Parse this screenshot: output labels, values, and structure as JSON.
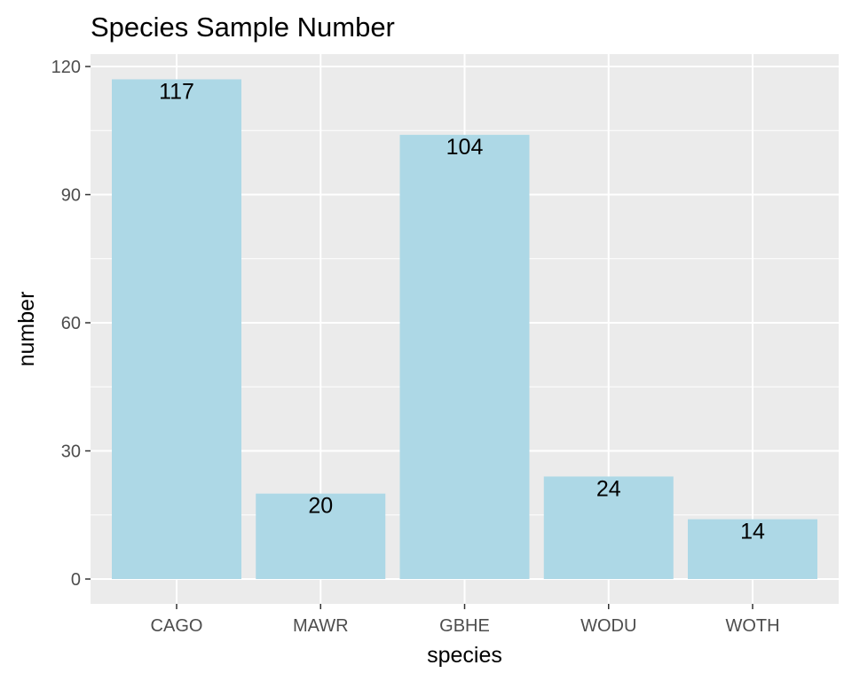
{
  "chart_data": {
    "type": "bar",
    "title": "Species Sample Number",
    "xlabel": "species",
    "ylabel": "number",
    "categories": [
      "CAGO",
      "MAWR",
      "GBHE",
      "WODU",
      "WOTH"
    ],
    "values": [
      117,
      20,
      104,
      24,
      14
    ],
    "data_labels": [
      "117",
      "20",
      "104",
      "24",
      "14"
    ],
    "ylim": [
      0,
      120
    ],
    "y_ticks": [
      0,
      30,
      60,
      90,
      120
    ],
    "y_tick_labels": [
      "0",
      "30",
      "60",
      "90",
      "120"
    ],
    "grid": true,
    "legend": "none",
    "colors": {
      "bar": "#add8e6",
      "panel_background": "#ebebeb",
      "grid": "#ffffff",
      "tick_text": "#4d4d4d",
      "text": "#000000"
    }
  }
}
